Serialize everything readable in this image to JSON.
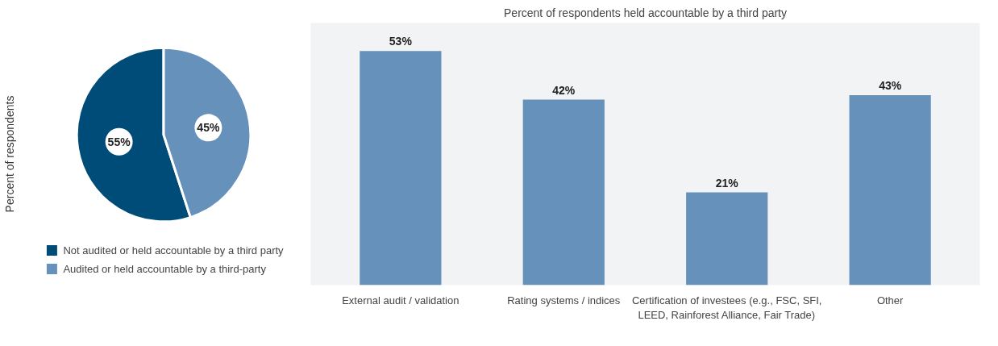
{
  "chart_data": [
    {
      "type": "pie",
      "ylabel": "Percent of respondents",
      "categories": [
        "Not audited or held accountable by a third party",
        "Audited or held accountable by a third-party"
      ],
      "values": [
        55,
        45
      ],
      "colors": [
        "#004c79",
        "#6591bb"
      ],
      "value_labels": [
        "55%",
        "45%"
      ],
      "legend": "bottom"
    },
    {
      "type": "bar",
      "title": "Percent of respondents held accountable by a third party",
      "categories": [
        "External audit / validation",
        "Rating systems / indices",
        "Certification of investees (e.g., FSC, SFI,\nLEED, Rainforest Alliance, Fair Trade)",
        "Other"
      ],
      "values": [
        53,
        42,
        21,
        43
      ],
      "color": "#6591bb",
      "value_labels": [
        "53%",
        "42%",
        "21%",
        "43%"
      ]
    }
  ]
}
